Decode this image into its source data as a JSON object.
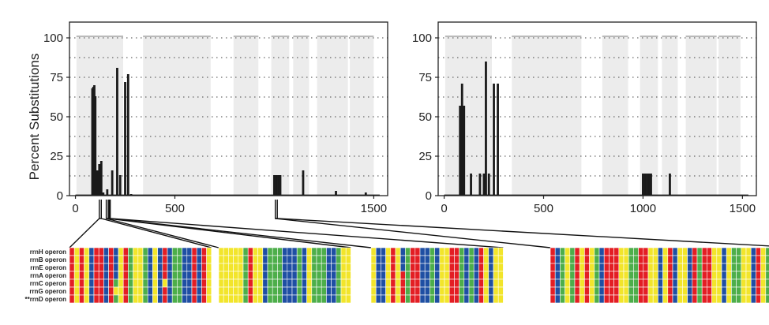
{
  "colors": {
    "A": "#e31e24",
    "C": "#1f4fa3",
    "G": "#4dae4a",
    "T": "#f2e52b",
    "shade": "#ececec",
    "bar": "#1a1a1a",
    "grid": "#444444"
  },
  "chart_data": [
    {
      "type": "bar",
      "name": "left",
      "ylabel": "Percent Substitutions",
      "xlim": [
        -30,
        1570
      ],
      "ylim": [
        0,
        110
      ],
      "xticks": [
        0,
        500,
        1500
      ],
      "yticks": [
        0,
        25,
        50,
        75,
        100
      ],
      "shaded_regions": [
        [
          5,
          240
        ],
        [
          340,
          680
        ],
        [
          795,
          920
        ],
        [
          985,
          1075
        ],
        [
          1095,
          1175
        ],
        [
          1215,
          1370
        ],
        [
          1380,
          1500
        ]
      ],
      "bars": [
        {
          "x": 85,
          "y": 68
        },
        {
          "x": 90,
          "y": 69
        },
        {
          "x": 95,
          "y": 70
        },
        {
          "x": 100,
          "y": 63
        },
        {
          "x": 110,
          "y": 16
        },
        {
          "x": 120,
          "y": 20
        },
        {
          "x": 130,
          "y": 22
        },
        {
          "x": 140,
          "y": 2
        },
        {
          "x": 160,
          "y": 4
        },
        {
          "x": 185,
          "y": 16
        },
        {
          "x": 210,
          "y": 81
        },
        {
          "x": 225,
          "y": 13
        },
        {
          "x": 250,
          "y": 72
        },
        {
          "x": 265,
          "y": 77
        },
        {
          "x": 280,
          "y": 1
        },
        {
          "x": 1000,
          "y": 13
        },
        {
          "x": 1010,
          "y": 13
        },
        {
          "x": 1020,
          "y": 13
        },
        {
          "x": 1030,
          "y": 13
        },
        {
          "x": 1145,
          "y": 16
        },
        {
          "x": 1310,
          "y": 3
        },
        {
          "x": 1460,
          "y": 2
        }
      ]
    },
    {
      "type": "bar",
      "name": "right",
      "xlim": [
        -30,
        1570
      ],
      "ylim": [
        0,
        110
      ],
      "xticks": [
        0,
        500,
        1000,
        1500
      ],
      "yticks": [
        0,
        25,
        50,
        75,
        100
      ],
      "shaded_regions": [
        [
          5,
          240
        ],
        [
          340,
          690
        ],
        [
          795,
          925
        ],
        [
          985,
          1075
        ],
        [
          1095,
          1175
        ],
        [
          1215,
          1370
        ],
        [
          1380,
          1490
        ]
      ],
      "bars": [
        {
          "x": 80,
          "y": 57
        },
        {
          "x": 90,
          "y": 71
        },
        {
          "x": 100,
          "y": 57
        },
        {
          "x": 135,
          "y": 14
        },
        {
          "x": 180,
          "y": 14
        },
        {
          "x": 200,
          "y": 14
        },
        {
          "x": 210,
          "y": 85
        },
        {
          "x": 225,
          "y": 14
        },
        {
          "x": 250,
          "y": 71
        },
        {
          "x": 270,
          "y": 71
        },
        {
          "x": 1000,
          "y": 14
        },
        {
          "x": 1010,
          "y": 14
        },
        {
          "x": 1020,
          "y": 14
        },
        {
          "x": 1030,
          "y": 14
        },
        {
          "x": 1040,
          "y": 14
        },
        {
          "x": 1135,
          "y": 14
        }
      ]
    }
  ],
  "alignment": {
    "rows": [
      "rrnH operon",
      "rrnB operon",
      "rrnE operon",
      "rrnA operon",
      "rrnC operon",
      "rrnG operon",
      "**rrnD operon"
    ],
    "blocks": [
      {
        "connect_x": [
          120,
          130
        ],
        "base": "ATATCAACATTAGTCGCTCTCGGCCACAT",
        "subs": [
          [
            "C",
            "C",
            "C",
            "C",
            "G",
            "T",
            "G"
          ],
          [
            "T",
            "T",
            "T",
            "T",
            "T",
            "T",
            "T"
          ],
          [
            "A",
            "A",
            "A",
            "A",
            "T",
            "A",
            "A"
          ]
        ],
        "sub_cols": [
          9,
          14,
          19
        ]
      },
      {
        "connect_x": [
          155,
          165
        ],
        "base": "TTTTTGCTTCGGGCCCGCTGGGCCGTT",
        "subs": [
          [
            "A",
            "A",
            "A",
            "A",
            "A",
            "A",
            "A"
          ]
        ],
        "sub_cols": [
          6
        ]
      },
      {
        "connect_x": [
          170,
          175
        ],
        "base": "TCCTATCGAACCGCTTAAGCGCATCTT",
        "subs": [
          [
            "C",
            "C",
            "C",
            "A",
            "A",
            "A",
            "A"
          ]
        ],
        "sub_cols": [
          6
        ]
      },
      {
        "connect_x": [
          1005,
          1015
        ],
        "base": "ACGTGATATGCAAATTGGAATTCTACTTCAGAATTCTGGTTCATGAGCCAC",
        "subs": [],
        "sub_cols": []
      }
    ]
  }
}
